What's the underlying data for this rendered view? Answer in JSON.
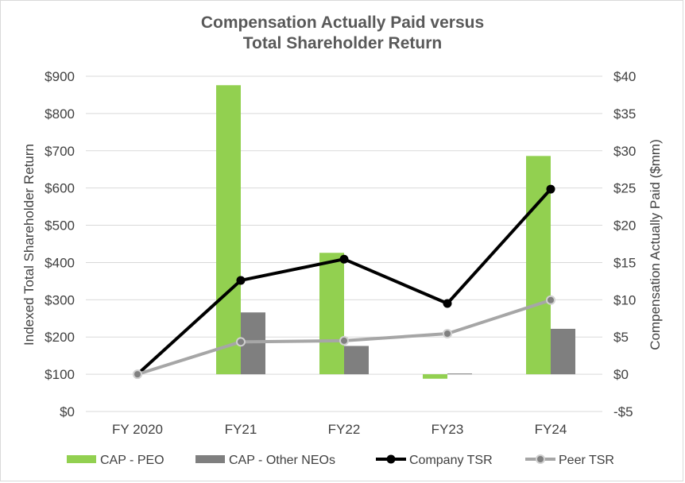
{
  "chart_data": {
    "type": "bar+line",
    "title_lines": [
      "Compensation Actually Paid versus",
      "Total Shareholder Return"
    ],
    "categories": [
      "FY 2020",
      "FY21",
      "FY22",
      "FY23",
      "FY24"
    ],
    "left_axis": {
      "label": "Indexed Total Shareholder Return",
      "range": [
        0,
        900
      ],
      "ticks": [
        0,
        100,
        200,
        300,
        400,
        500,
        600,
        700,
        800,
        900
      ],
      "tick_labels": [
        "$0",
        "$100",
        "$200",
        "$300",
        "$400",
        "$500",
        "$600",
        "$700",
        "$800",
        "$900"
      ]
    },
    "right_axis": {
      "label": "Compensation Actually Paid ($mm)",
      "range": [
        -5,
        40
      ],
      "ticks": [
        -5,
        0,
        5,
        10,
        15,
        20,
        25,
        30,
        35,
        40
      ],
      "tick_labels": [
        "-$5",
        "$0",
        "$5",
        "$10",
        "$15",
        "$20",
        "$25",
        "$30",
        "$35",
        "$40"
      ]
    },
    "bar_series": [
      {
        "name": "CAP - PEO",
        "axis": "right",
        "color": "#92d050",
        "values": [
          null,
          38.8,
          16.3,
          -0.6,
          29.3
        ]
      },
      {
        "name": "CAP - Other NEOs",
        "axis": "right",
        "color": "#7f7f7f",
        "values": [
          null,
          8.3,
          3.8,
          0.1,
          6.1
        ]
      }
    ],
    "line_series": [
      {
        "name": "Company TSR",
        "axis": "left",
        "color": "#000000",
        "values": [
          100,
          352,
          409,
          290,
          597
        ]
      },
      {
        "name": "Peer TSR",
        "axis": "left",
        "color": "#a6a6a6",
        "values": [
          100,
          187,
          190,
          209,
          299
        ]
      }
    ],
    "legend_position": "bottom",
    "gridlines": true
  }
}
